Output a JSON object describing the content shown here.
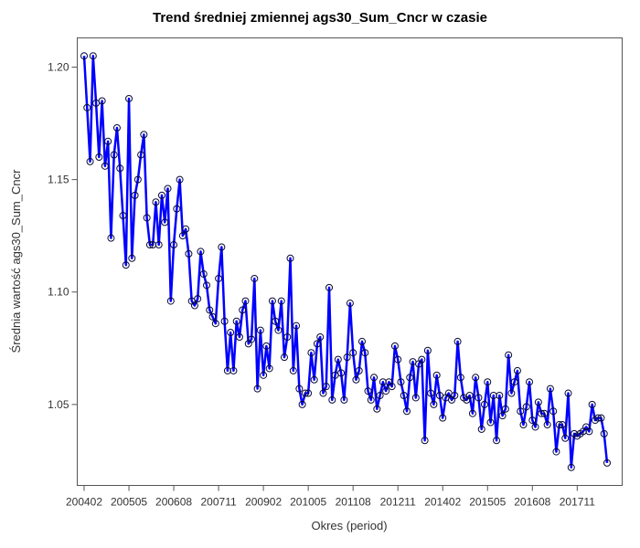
{
  "chart_data": {
    "type": "line",
    "title": "Trend średniej zmiennej ags30_Sum_Cncr w czasie",
    "xlabel": "Okres (period)",
    "ylabel": "Średnia wartość ags30_Sum_Cncr",
    "x_tick_labels": [
      "200402",
      "200505",
      "200608",
      "200711",
      "200902",
      "201005",
      "201108",
      "201211",
      "201402",
      "201505",
      "201608",
      "201711"
    ],
    "y_ticks": [
      1.05,
      1.1,
      1.15,
      1.2
    ],
    "y_tick_labels": [
      "1.05",
      "1.10",
      "1.15",
      "1.20"
    ],
    "ylim": [
      1.014,
      1.213
    ],
    "x_start_month": "2004-02",
    "x_end_month": "2018-06",
    "grid": false,
    "legend": "none",
    "line_color": "#0000ff",
    "marker": "open-circle",
    "values": [
      1.205,
      1.182,
      1.158,
      1.205,
      1.184,
      1.16,
      1.185,
      1.156,
      1.167,
      1.124,
      1.161,
      1.173,
      1.155,
      1.134,
      1.112,
      1.186,
      1.115,
      1.143,
      1.15,
      1.161,
      1.17,
      1.133,
      1.121,
      1.121,
      1.14,
      1.121,
      1.143,
      1.131,
      1.146,
      1.096,
      1.121,
      1.137,
      1.15,
      1.125,
      1.128,
      1.117,
      1.096,
      1.094,
      1.097,
      1.118,
      1.108,
      1.103,
      1.092,
      1.089,
      1.086,
      1.106,
      1.12,
      1.087,
      1.065,
      1.082,
      1.065,
      1.087,
      1.08,
      1.092,
      1.096,
      1.077,
      1.079,
      1.106,
      1.057,
      1.083,
      1.063,
      1.076,
      1.066,
      1.096,
      1.087,
      1.083,
      1.096,
      1.071,
      1.08,
      1.115,
      1.065,
      1.085,
      1.057,
      1.05,
      1.055,
      1.055,
      1.073,
      1.061,
      1.077,
      1.08,
      1.055,
      1.058,
      1.102,
      1.052,
      1.063,
      1.07,
      1.064,
      1.052,
      1.071,
      1.095,
      1.073,
      1.061,
      1.065,
      1.078,
      1.073,
      1.056,
      1.052,
      1.062,
      1.048,
      1.054,
      1.06,
      1.056,
      1.06,
      1.058,
      1.076,
      1.07,
      1.06,
      1.054,
      1.047,
      1.062,
      1.069,
      1.053,
      1.068,
      1.07,
      1.034,
      1.074,
      1.055,
      1.05,
      1.063,
      1.054,
      1.044,
      1.053,
      1.055,
      1.052,
      1.054,
      1.078,
      1.062,
      1.053,
      1.052,
      1.054,
      1.046,
      1.062,
      1.053,
      1.039,
      1.05,
      1.06,
      1.042,
      1.054,
      1.034,
      1.054,
      1.045,
      1.048,
      1.072,
      1.055,
      1.06,
      1.065,
      1.047,
      1.041,
      1.049,
      1.06,
      1.043,
      1.04,
      1.051,
      1.046,
      1.046,
      1.041,
      1.057,
      1.047,
      1.029,
      1.041,
      1.041,
      1.035,
      1.055,
      1.022,
      1.037,
      1.036,
      1.037,
      1.038,
      1.04,
      1.038,
      1.05,
      1.043,
      1.044,
      1.044,
      1.037,
      1.024
    ]
  }
}
